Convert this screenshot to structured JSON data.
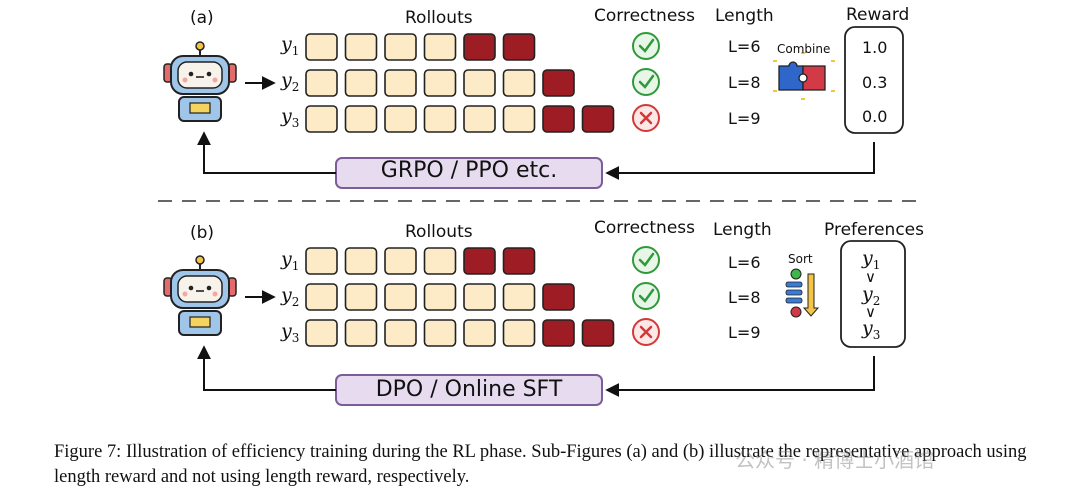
{
  "panel_a": {
    "tag": "(a)",
    "rollouts_header": "Rollouts",
    "correctness_header": "Correctness",
    "length_header": "Length",
    "reward_header": "Reward",
    "combine_label": "Combine",
    "outputs": [
      {
        "var": "y",
        "sub": "1",
        "light": 4,
        "dark": 2,
        "correct": true,
        "length": "L=6",
        "reward": "1.0"
      },
      {
        "var": "y",
        "sub": "2",
        "light": 6,
        "dark": 1,
        "correct": true,
        "length": "L=8",
        "reward": "0.3"
      },
      {
        "var": "y",
        "sub": "3",
        "light": 6,
        "dark": 2,
        "correct": false,
        "length": "L=9",
        "reward": "0.0"
      }
    ],
    "method": "GRPO / PPO  etc."
  },
  "panel_b": {
    "tag": "(b)",
    "rollouts_header": "Rollouts",
    "correctness_header": "Correctness",
    "length_header": "Length",
    "preferences_header": "Preferences",
    "sort_label": "Sort",
    "outputs": [
      {
        "var": "y",
        "sub": "1",
        "light": 4,
        "dark": 2,
        "correct": true,
        "length": "L=6"
      },
      {
        "var": "y",
        "sub": "2",
        "light": 6,
        "dark": 1,
        "correct": true,
        "length": "L=8"
      },
      {
        "var": "y",
        "sub": "3",
        "light": 6,
        "dark": 2,
        "correct": false,
        "length": "L=9"
      }
    ],
    "preference_order": [
      {
        "var": "y",
        "sub": "1"
      },
      {
        "var": "y",
        "sub": "2"
      },
      {
        "var": "y",
        "sub": "3"
      }
    ],
    "preference_symbol": "∨",
    "method": "DPO / Online SFT"
  },
  "caption": "Figure 7: Illustration of efficiency training during the RL phase. Sub-Figures (a) and (b) illustrate the representative approach using length reward and not using length reward, respectively.",
  "watermark": "公众号 · 精博士小酒馆",
  "colors": {
    "light_cell": "#fcebc6",
    "dark_cell": "#9e1c24",
    "method_box": "#e7dcef",
    "method_border": "#7c5d99",
    "check": "#2f9a3a",
    "cross": "#d23a3a"
  },
  "icons": [
    "robot-icon",
    "check-icon",
    "cross-icon",
    "puzzle-icon",
    "sort-icon"
  ]
}
